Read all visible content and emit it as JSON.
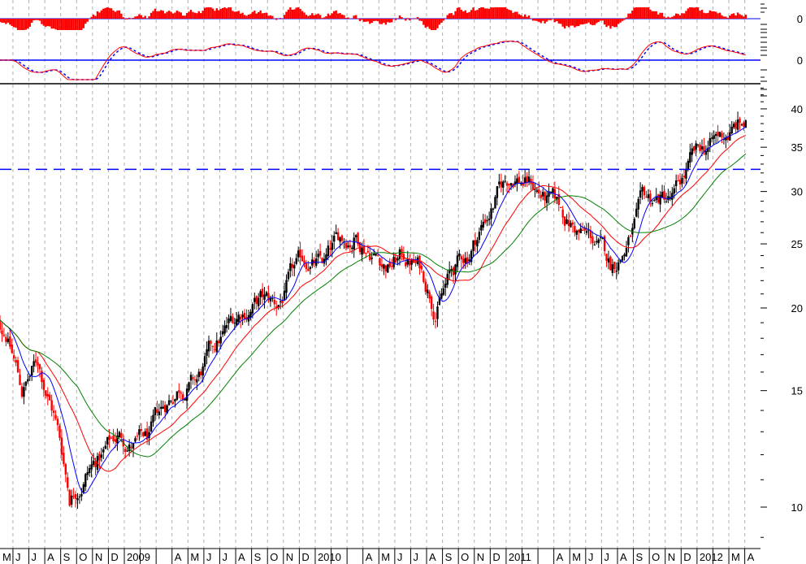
{
  "chart_data": {
    "type": "ohlc",
    "scale": "log",
    "title": "",
    "xlabel": "",
    "ylabel": "",
    "ylim": [
      9,
      43
    ],
    "grid": {
      "vertical": "dashed monthly",
      "horizontal": false
    },
    "y_ticks": [
      "10",
      "15",
      "20",
      "25",
      "30",
      "35",
      "40"
    ],
    "y_tick_values": [
      10,
      15,
      20,
      25,
      30,
      35,
      40
    ],
    "x_labels": [
      "M",
      "J",
      "J",
      "A",
      "S",
      "O",
      "N",
      "D",
      "2009",
      "",
      "",
      "A",
      "M",
      "J",
      "J",
      "A",
      "S",
      "O",
      "N",
      "D",
      "2010",
      "",
      "",
      "A",
      "M",
      "J",
      "J",
      "A",
      "S",
      "O",
      "N",
      "D",
      "2011",
      "",
      "",
      "A",
      "M",
      "J",
      "J",
      "A",
      "S",
      "O",
      "N",
      "D",
      "2012",
      "",
      "M",
      "A"
    ],
    "months": [
      "2008-05",
      "2008-06",
      "2008-07",
      "2008-08",
      "2008-09",
      "2008-10",
      "2008-11",
      "2008-12",
      "2009-01",
      "2009-02",
      "2009-03",
      "2009-04",
      "2009-05",
      "2009-06",
      "2009-07",
      "2009-08",
      "2009-09",
      "2009-10",
      "2009-11",
      "2009-12",
      "2010-01",
      "2010-02",
      "2010-03",
      "2010-04",
      "2010-05",
      "2010-06",
      "2010-07",
      "2010-08",
      "2010-09",
      "2010-10",
      "2010-11",
      "2010-12",
      "2011-01",
      "2011-02",
      "2011-03",
      "2011-04",
      "2011-05",
      "2011-06",
      "2011-07",
      "2011-08",
      "2011-09",
      "2011-10",
      "2011-11",
      "2011-12",
      "2012-01",
      "2012-02",
      "2012-03",
      "2012-04"
    ],
    "monthly_close": [
      19,
      18.5,
      15,
      16.5,
      14,
      10.5,
      11.5,
      12,
      12.8,
      12.5,
      12.5,
      14,
      15.5,
      15.5,
      17,
      18.5,
      20,
      20.5,
      20,
      22,
      23.5,
      23,
      25,
      26,
      25,
      23.5,
      24,
      23,
      20.5,
      22.5,
      24,
      27,
      30,
      32,
      31,
      29,
      27.5,
      26,
      25,
      23,
      25,
      28,
      29,
      29,
      32.5,
      34.5,
      36,
      37.5
    ],
    "reference_line": 32.4,
    "moving_averages": [
      {
        "color": "#0000ff"
      },
      {
        "color": "#ff0000"
      },
      {
        "color": "#008000"
      }
    ],
    "colors": {
      "up_bar": "#000000",
      "down_bar": "#ff0000",
      "reference_line": "#0000ff",
      "grid": "#b0b0b0"
    },
    "indicator_panels": [
      {
        "type": "histogram",
        "zero_label": "0",
        "color": "#ff0000"
      },
      {
        "type": "oscillator",
        "zero_label": "0",
        "lines": [
          "#ff0000",
          "#0000ff"
        ],
        "zero_line_color": "#0000ff"
      }
    ]
  }
}
